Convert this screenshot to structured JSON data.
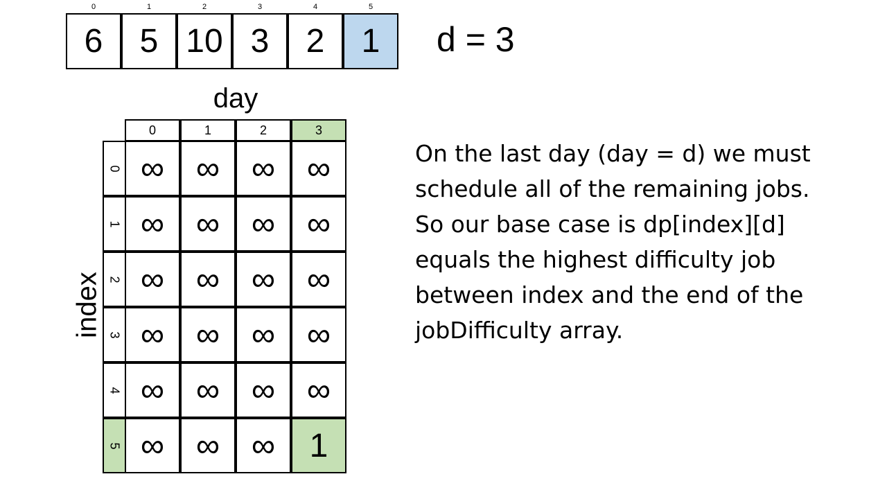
{
  "array": {
    "indices": [
      "0",
      "1",
      "2",
      "3",
      "4",
      "5"
    ],
    "values": [
      "6",
      "5",
      "10",
      "3",
      "2",
      "1"
    ],
    "highlight_index": 5,
    "highlight_color": "#bdd7ee"
  },
  "d_label": "d = 3",
  "dp_table": {
    "col_title": "day",
    "row_title": "index",
    "col_headers": [
      "0",
      "1",
      "2",
      "3"
    ],
    "row_headers": [
      "0",
      "1",
      "2",
      "3",
      "4",
      "5"
    ],
    "cells": [
      [
        "∞",
        "∞",
        "∞",
        "∞"
      ],
      [
        "∞",
        "∞",
        "∞",
        "∞"
      ],
      [
        "∞",
        "∞",
        "∞",
        "∞"
      ],
      [
        "∞",
        "∞",
        "∞",
        "∞"
      ],
      [
        "∞",
        "∞",
        "∞",
        "∞"
      ],
      [
        "∞",
        "∞",
        "∞",
        "1"
      ]
    ],
    "highlight_col": 3,
    "highlight_row": 5,
    "highlight_color": "#c5e0b4"
  },
  "explanation": {
    "lines": [
      "On the last day (day = d) we must",
      "schedule all of the remaining jobs.",
      "So our base case is dp[index][d]",
      "equals the highest difficulty job",
      "between index and the end of the",
      "jobDifficulty array."
    ]
  }
}
